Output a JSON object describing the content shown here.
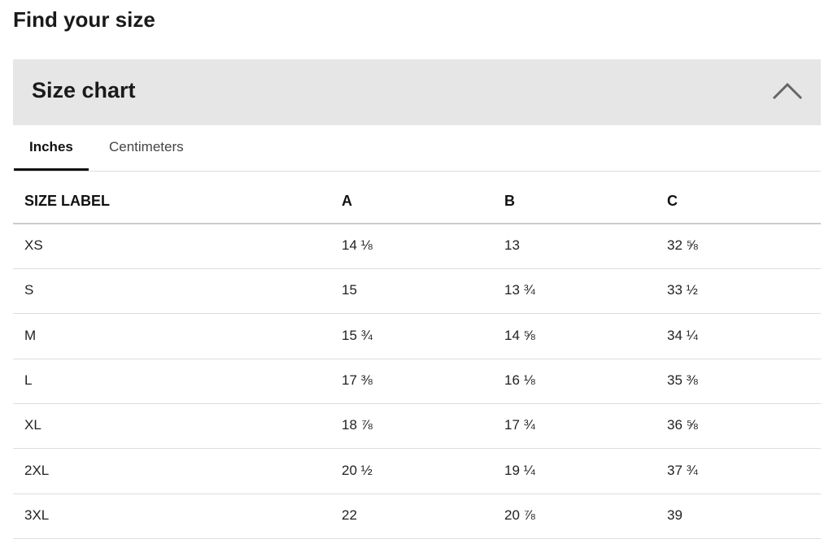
{
  "header": {
    "title": "Find your size"
  },
  "panel": {
    "title": "Size chart"
  },
  "tabs": [
    "Inches",
    "Centimeters"
  ],
  "table": {
    "columns": [
      "SIZE LABEL",
      "A",
      "B",
      "C"
    ],
    "rows": [
      [
        "XS",
        "14 ⅛",
        "13",
        "32 ⅝"
      ],
      [
        "S",
        "15",
        "13 ¾",
        "33 ½"
      ],
      [
        "M",
        "15 ¾",
        "14 ⅝",
        "34 ¼"
      ],
      [
        "L",
        "17 ⅜",
        "16 ⅛",
        "35 ⅜"
      ],
      [
        "XL",
        "18 ⅞",
        "17 ¾",
        "36 ⅝"
      ],
      [
        "2XL",
        "20 ½",
        "19 ¼",
        "37 ¾"
      ],
      [
        "3XL",
        "22",
        "20 ⅞",
        "39"
      ]
    ]
  }
}
